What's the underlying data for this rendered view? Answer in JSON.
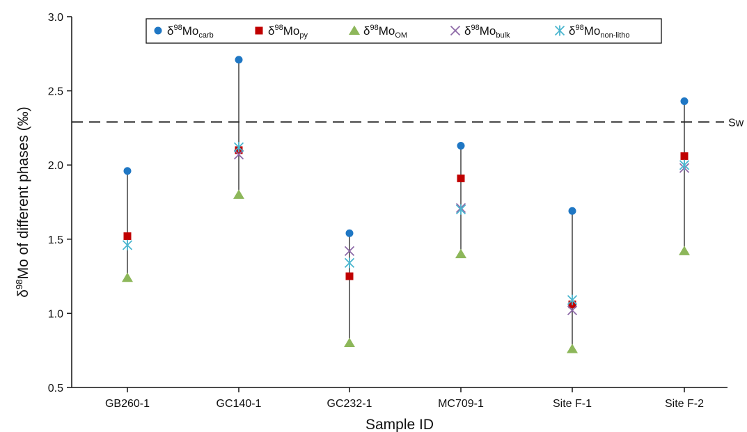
{
  "chart_data": {
    "type": "scatter",
    "xlabel": "Sample ID",
    "ylabel_main": "δ",
    "ylabel_sup": "98",
    "ylabel_rest": "Mo of different  phases (‰)",
    "ylim": [
      0.5,
      3.0
    ],
    "yticks": [
      "0.5",
      "1.0",
      "1.5",
      "2.0",
      "2.5",
      "3.0"
    ],
    "categories": [
      "GB260-1",
      "GC140-1",
      "GC232-1",
      "MC709-1",
      "Site F-1",
      "Site F-2"
    ],
    "series": [
      {
        "key": "carb",
        "name": "δ98Mo carb",
        "label_main": "δ",
        "label_sup": "98",
        "label_mid": "Mo",
        "label_sub": "carb",
        "marker": "circle",
        "color": "#1f77c4",
        "values": [
          1.96,
          2.71,
          1.54,
          2.13,
          1.69,
          2.43
        ]
      },
      {
        "key": "py",
        "name": "δ98Mo py",
        "label_main": "δ",
        "label_sup": "98",
        "label_mid": "Mo",
        "label_sub": "py",
        "marker": "square",
        "color": "#c00000",
        "values": [
          1.52,
          2.1,
          1.25,
          1.91,
          1.06,
          2.06
        ]
      },
      {
        "key": "OM",
        "name": "δ98Mo OM",
        "label_main": "δ",
        "label_sup": "98",
        "label_mid": "Mo",
        "label_sub": "OM",
        "marker": "triangle",
        "color": "#8db75a",
        "values": [
          1.24,
          1.8,
          0.8,
          1.4,
          0.76,
          1.42
        ]
      },
      {
        "key": "bulk",
        "name": "δ98Mo bulk",
        "label_main": "δ",
        "label_sup": "98",
        "label_mid": "Mo",
        "label_sub": "bulk",
        "marker": "x",
        "color": "#8e6aa8",
        "values": [
          null,
          2.07,
          1.42,
          1.71,
          1.02,
          1.98
        ]
      },
      {
        "key": "nonlitho",
        "name": "δ98Mo non-litho",
        "label_main": "δ",
        "label_sup": "98",
        "label_mid": "Mo",
        "label_sub": "non-litho",
        "marker": "asterisk",
        "color": "#4bb6cf",
        "values": [
          1.46,
          2.12,
          1.34,
          1.7,
          1.09,
          2.0
        ]
      }
    ],
    "reference_line": {
      "label": "Sw",
      "value": 2.29,
      "style": "dashed"
    },
    "legend_position": "top",
    "grid": false
  }
}
